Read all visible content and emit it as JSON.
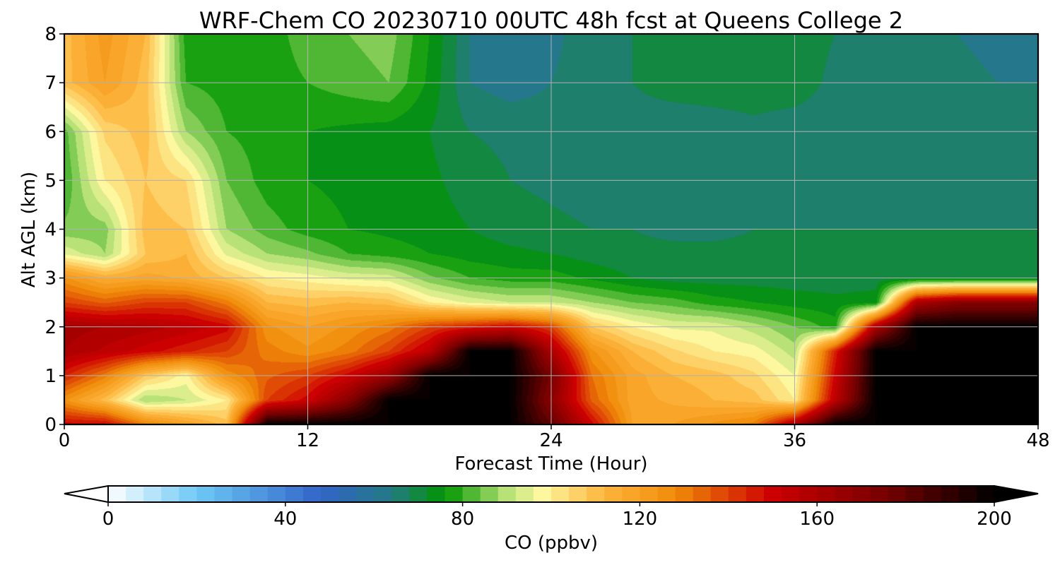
{
  "chart_data": {
    "type": "heatmap",
    "title": "WRF-Chem CO  20230710 00UTC 48h fcst at Queens College 2",
    "xlabel": "Forecast Time (Hour)",
    "ylabel": "Alt AGL (km)",
    "xlim": [
      0,
      48
    ],
    "ylim": [
      0,
      8
    ],
    "x_ticks": [
      0,
      12,
      24,
      36,
      48
    ],
    "y_ticks": [
      0,
      1,
      2,
      3,
      4,
      5,
      6,
      7,
      8
    ],
    "grid": true,
    "x": [
      0,
      2,
      4,
      6,
      8,
      10,
      12,
      14,
      16,
      18,
      20,
      22,
      24,
      26,
      28,
      30,
      32,
      34,
      36,
      38,
      40,
      42,
      44,
      46,
      48
    ],
    "y": [
      0,
      0.5,
      1,
      1.5,
      2,
      2.5,
      3,
      3.5,
      4,
      5,
      6,
      7,
      8
    ],
    "z_comment_units": "ppbv",
    "z": [
      [
        150,
        150,
        130,
        120,
        110,
        200,
        200,
        200,
        200,
        200,
        200,
        200,
        180,
        150,
        120,
        120,
        125,
        130,
        160,
        200,
        200,
        200,
        200,
        200,
        200
      ],
      [
        125,
        110,
        88,
        92,
        100,
        140,
        150,
        170,
        200,
        200,
        200,
        200,
        170,
        135,
        118,
        115,
        112,
        110,
        100,
        155,
        200,
        200,
        200,
        200,
        200
      ],
      [
        145,
        130,
        108,
        98,
        125,
        135,
        140,
        150,
        165,
        200,
        200,
        200,
        175,
        132,
        118,
        112,
        110,
        105,
        96,
        150,
        200,
        200,
        200,
        200,
        200
      ],
      [
        160,
        155,
        150,
        145,
        140,
        130,
        125,
        130,
        140,
        155,
        200,
        200,
        160,
        125,
        112,
        105,
        100,
        98,
        90,
        145,
        200,
        200,
        200,
        200,
        200
      ],
      [
        162,
        160,
        158,
        155,
        150,
        125,
        120,
        125,
        130,
        140,
        145,
        150,
        140,
        108,
        100,
        95,
        95,
        90,
        84,
        78,
        160,
        200,
        200,
        200,
        200
      ],
      [
        140,
        135,
        140,
        140,
        130,
        112,
        110,
        112,
        110,
        100,
        95,
        92,
        92,
        88,
        84,
        82,
        78,
        76,
        74,
        73,
        74,
        160,
        170,
        170,
        170
      ],
      [
        125,
        115,
        118,
        115,
        108,
        100,
        98,
        95,
        94,
        85,
        80,
        78,
        78,
        75,
        72,
        70,
        70,
        70,
        70,
        70,
        70,
        70,
        70,
        70,
        70
      ],
      [
        95,
        88,
        108,
        112,
        95,
        88,
        85,
        80,
        78,
        76,
        74,
        73,
        72,
        70,
        69,
        69,
        69,
        69,
        69,
        69,
        69,
        69,
        69,
        68,
        68
      ],
      [
        85,
        86,
        110,
        108,
        88,
        82,
        78,
        76,
        75,
        74,
        72,
        70,
        69,
        68,
        68,
        67,
        67,
        68,
        68,
        68,
        68,
        68,
        68,
        68,
        68
      ],
      [
        80,
        100,
        108,
        104,
        84,
        78,
        76,
        75,
        74,
        73,
        70,
        68,
        67,
        66,
        66,
        66,
        66,
        66,
        66,
        66,
        67,
        67,
        66,
        66,
        66
      ],
      [
        82,
        105,
        110,
        88,
        80,
        78,
        76,
        75,
        74,
        72,
        68,
        67,
        66,
        66,
        66,
        65,
        66,
        67,
        66,
        66,
        66,
        66,
        65,
        65,
        65
      ],
      [
        110,
        120,
        110,
        80,
        78,
        78,
        80,
        82,
        84,
        75,
        64,
        62,
        64,
        66,
        68,
        70,
        70,
        70,
        70,
        67,
        66,
        66,
        65,
        64,
        64
      ],
      [
        110,
        122,
        112,
        78,
        77,
        78,
        82,
        84,
        86,
        76,
        64,
        60,
        63,
        66,
        68,
        72,
        72,
        72,
        70,
        68,
        66,
        66,
        64,
        63,
        63
      ]
    ],
    "colorbar": {
      "label": "CO  (ppbv)",
      "min": 0,
      "max": 200,
      "ticks": [
        0,
        40,
        80,
        120,
        160,
        200
      ],
      "extend": "both",
      "stops": [
        {
          "v": 0,
          "c": "#ffffff"
        },
        {
          "v": 20,
          "c": "#6dc9f5"
        },
        {
          "v": 48,
          "c": "#3264c8"
        },
        {
          "v": 64,
          "c": "#237a82"
        },
        {
          "v": 76,
          "c": "#009600"
        },
        {
          "v": 90,
          "c": "#b8e278"
        },
        {
          "v": 98,
          "c": "#fdf7a0"
        },
        {
          "v": 112,
          "c": "#fdb43c"
        },
        {
          "v": 128,
          "c": "#f08c0a"
        },
        {
          "v": 150,
          "c": "#cc0000"
        },
        {
          "v": 175,
          "c": "#780000"
        },
        {
          "v": 200,
          "c": "#000000"
        }
      ]
    }
  }
}
